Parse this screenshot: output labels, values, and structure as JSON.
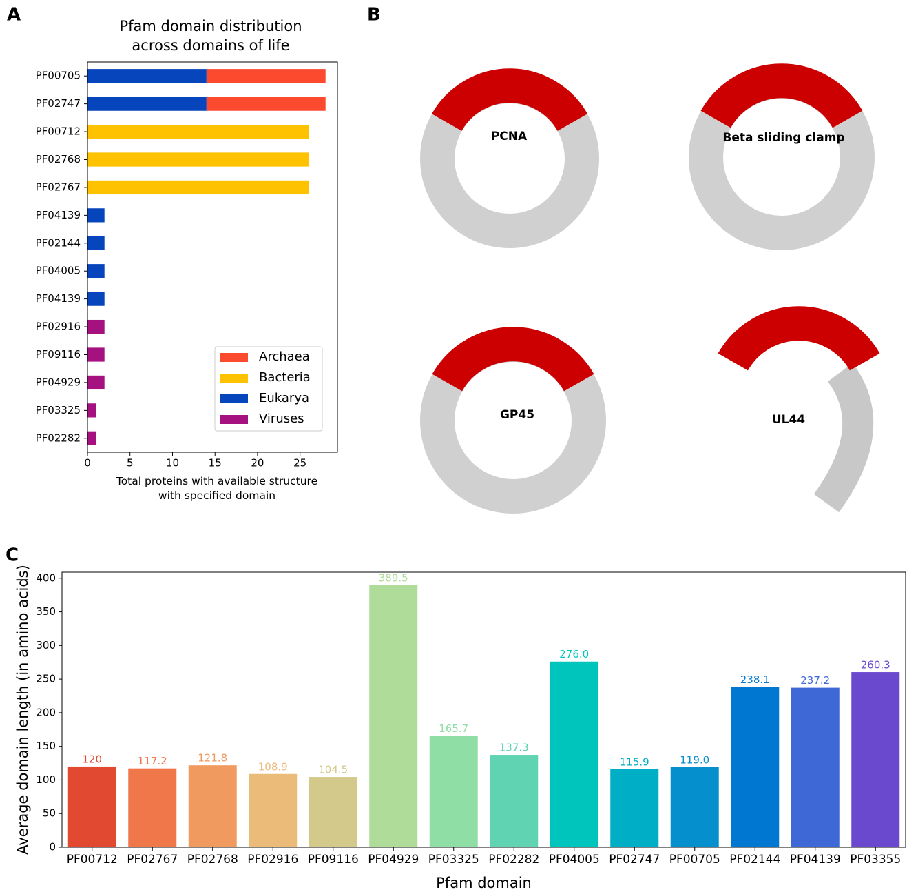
{
  "panel_labels": [
    "A",
    "B",
    "C"
  ],
  "structures": [
    {
      "label": "PCNA"
    },
    {
      "label": "Beta sliding clamp"
    },
    {
      "label": "GP45"
    },
    {
      "label": "UL44"
    }
  ],
  "chart_data": [
    {
      "type": "hbar_stacked",
      "title": "Pfam domain distribution across domains of life",
      "x_label": "Total proteins with available structure with specified domain",
      "categories": [
        "PF00705",
        "PF02747",
        "PF00712",
        "PF02768",
        "PF02767",
        "PF04139",
        "PF02144",
        "PF04005",
        "PF04139",
        "PF02916",
        "PF09116",
        "PF04929",
        "PF03325",
        "PF02282"
      ],
      "series": [
        {
          "name": "Archaea",
          "color": "#fc4a2f",
          "values": [
            14,
            14,
            0,
            0,
            0,
            0,
            0,
            0,
            0,
            0,
            0,
            0,
            0,
            0
          ]
        },
        {
          "name": "Bacteria",
          "color": "#fec200",
          "values": [
            0,
            0,
            26,
            26,
            26,
            0,
            0,
            0,
            0,
            0,
            0,
            0,
            0,
            0
          ]
        },
        {
          "name": "Eukarya",
          "color": "#0745bd",
          "values": [
            14,
            14,
            0,
            0,
            0,
            2,
            2,
            2,
            2,
            0,
            0,
            0,
            0,
            0
          ]
        },
        {
          "name": "Viruses",
          "color": "#a5117f",
          "values": [
            0,
            0,
            0,
            0,
            0,
            0,
            0,
            0,
            0,
            2,
            2,
            2,
            1,
            1
          ]
        }
      ],
      "xlim": [
        0,
        29.4
      ],
      "xticks": [
        0,
        5,
        10,
        15,
        20,
        25
      ],
      "legend": "lower right"
    },
    {
      "type": "bar",
      "x_label": "Pfam domain",
      "y_label": "Average domain length (in amino acids)",
      "categories": [
        "PF00712",
        "PF02767",
        "PF02768",
        "PF02916",
        "PF09116",
        "PF04929",
        "PF03325",
        "PF02282",
        "PF04005",
        "PF02747",
        "PF00705",
        "PF02144",
        "PF04139",
        "PF03355"
      ],
      "values": [
        120,
        117.2,
        121.8,
        108.9,
        104.5,
        389.5,
        165.7,
        137.3,
        276.0,
        115.9,
        119.0,
        238.1,
        237.2,
        260.3
      ],
      "value_labels": [
        "120",
        "117.2",
        "121.8",
        "108.9",
        "104.5",
        "389.5",
        "165.7",
        "137.3",
        "276.0",
        "115.9",
        "119.0",
        "238.1",
        "237.2",
        "260.3"
      ],
      "colors": [
        "#e14a30",
        "#ef774a",
        "#f19a60",
        "#ebbb7a",
        "#d2c98b",
        "#b0dc9a",
        "#8fdea6",
        "#5fd3b2",
        "#00c5bd",
        "#00aec6",
        "#0590cd",
        "#0077d1",
        "#3e68d5",
        "#6a49cf"
      ],
      "ylim": [
        0,
        409
      ],
      "yticks": [
        0,
        50,
        100,
        150,
        200,
        250,
        300,
        350,
        400
      ]
    }
  ]
}
